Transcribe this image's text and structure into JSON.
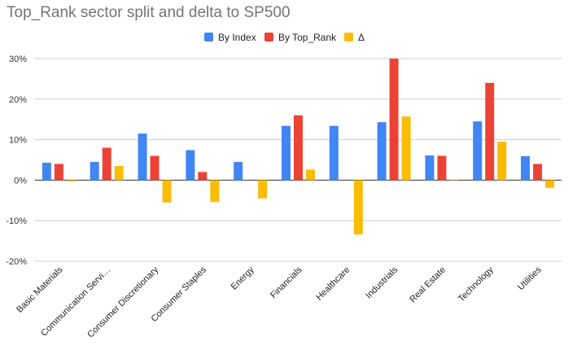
{
  "chart_data": {
    "type": "bar",
    "title": "Top_Rank sector split and delta to SP500",
    "categories": [
      "Basic Materials",
      "Communication Servi…",
      "Consumer Discretionary",
      "Consumer Staples",
      "Energy",
      "Financials",
      "Healthcare",
      "Industrials",
      "Real Estate",
      "Technology",
      "Utilities"
    ],
    "series": [
      {
        "name": "By Index",
        "color": "#4285f4",
        "values": [
          4.3,
          4.5,
          11.5,
          7.4,
          4.5,
          13.4,
          13.4,
          14.3,
          6.1,
          14.5,
          5.9
        ]
      },
      {
        "name": "By Top_Rank",
        "color": "#ea4335",
        "values": [
          4.0,
          8.0,
          6.0,
          2.0,
          0.0,
          16.0,
          0.0,
          30.0,
          6.0,
          24.0,
          4.0
        ]
      },
      {
        "name": "Δ",
        "color": "#fbbc04",
        "values": [
          -0.3,
          3.5,
          -5.5,
          -5.4,
          -4.5,
          2.6,
          -13.4,
          15.7,
          -0.1,
          9.5,
          -1.9
        ]
      }
    ],
    "ylim": [
      -20,
      30
    ],
    "yticks": [
      -20,
      -10,
      0,
      10,
      20,
      30
    ],
    "ytick_labels": [
      "-20%",
      "-10%",
      "0%",
      "10%",
      "20%",
      "30%"
    ],
    "xlabel": "",
    "ylabel": "",
    "grid": true,
    "legend_position": "top-center"
  }
}
